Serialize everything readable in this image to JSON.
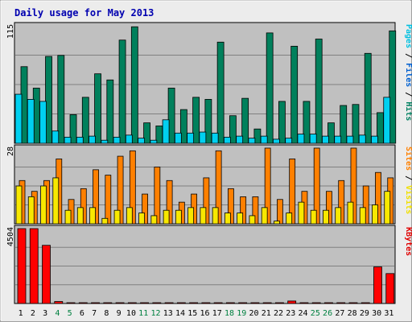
{
  "chart_data": [
    {
      "type": "bar",
      "title": "Daily usage for May 2013",
      "categories": [
        "1",
        "2",
        "3",
        "4",
        "5",
        "6",
        "7",
        "8",
        "9",
        "10",
        "11",
        "12",
        "13",
        "14",
        "15",
        "16",
        "17",
        "18",
        "19",
        "20",
        "21",
        "22",
        "23",
        "24",
        "25",
        "26",
        "27",
        "28",
        "29",
        "30",
        "31"
      ],
      "weekend_days": [
        "4",
        "5",
        "11",
        "12",
        "18",
        "19",
        "25",
        "26"
      ],
      "ylim": [
        0,
        115
      ],
      "max_label": "115",
      "side_label": [
        {
          "text": "Pages",
          "color": "#00c0e0"
        },
        {
          "text": " / ",
          "color": "#000000"
        },
        {
          "text": "Files",
          "color": "#0060d0"
        },
        {
          "text": " / ",
          "color": "#000000"
        },
        {
          "text": "Hits",
          "color": "#008060"
        }
      ],
      "series": [
        {
          "name": "Hits",
          "color": "#00805c",
          "values": [
            75,
            54,
            85,
            86,
            28,
            45,
            68,
            62,
            101,
            114,
            20,
            17,
            54,
            33,
            45,
            43,
            99,
            27,
            44,
            14,
            108,
            41,
            95,
            41,
            102,
            20,
            37,
            38,
            88,
            30,
            110
          ]
        },
        {
          "name": "Files",
          "color": "#0060d0",
          "values": [
            0,
            0,
            0,
            0,
            0,
            0,
            0,
            0,
            0,
            0,
            0,
            0,
            0,
            0,
            0,
            0,
            0,
            0,
            0,
            0,
            0,
            0,
            0,
            0,
            0,
            0,
            0,
            0,
            0,
            0,
            0
          ]
        },
        {
          "name": "Pages",
          "color": "#00d0f0",
          "values": [
            48,
            43,
            41,
            12,
            6,
            6,
            7,
            3,
            6,
            8,
            5,
            3,
            23,
            10,
            10,
            11,
            10,
            6,
            7,
            5,
            7,
            4,
            5,
            9,
            9,
            7,
            7,
            7,
            8,
            7,
            45
          ]
        }
      ]
    },
    {
      "type": "bar",
      "ylim": [
        0,
        28
      ],
      "max_label": "28",
      "side_label": [
        {
          "text": "Sites",
          "color": "#ff8000"
        },
        {
          "text": " / ",
          "color": "#000000"
        },
        {
          "text": "Visits",
          "color": "#f0e000"
        }
      ],
      "series": [
        {
          "name": "Visits",
          "color": "#f8e800",
          "values": [
            14,
            10,
            14,
            17,
            5,
            6,
            6,
            2,
            5,
            6,
            4,
            3,
            5,
            5,
            6,
            6,
            6,
            4,
            4,
            3,
            6,
            1,
            4,
            8,
            5,
            5,
            6,
            8,
            6,
            7,
            12
          ]
        },
        {
          "name": "Sites",
          "color": "#ff8000",
          "values": [
            16,
            12,
            16,
            24,
            9,
            13,
            20,
            18,
            25,
            27,
            11,
            21,
            16,
            8,
            11,
            17,
            27,
            13,
            10,
            10,
            28,
            9,
            24,
            12,
            28,
            12,
            16,
            28,
            14,
            19,
            17
          ]
        }
      ]
    },
    {
      "type": "bar",
      "ylim": [
        0,
        4504
      ],
      "max_label": "4504",
      "side_label": [
        {
          "text": "KBytes",
          "color": "#e00000"
        }
      ],
      "series": [
        {
          "name": "KBytes",
          "color": "#ff0000",
          "values": [
            4504,
            4504,
            3500,
            120,
            40,
            40,
            40,
            40,
            40,
            40,
            40,
            40,
            40,
            40,
            40,
            40,
            40,
            40,
            40,
            40,
            40,
            40,
            150,
            40,
            40,
            40,
            40,
            40,
            40,
            2200,
            1800
          ]
        }
      ]
    }
  ]
}
